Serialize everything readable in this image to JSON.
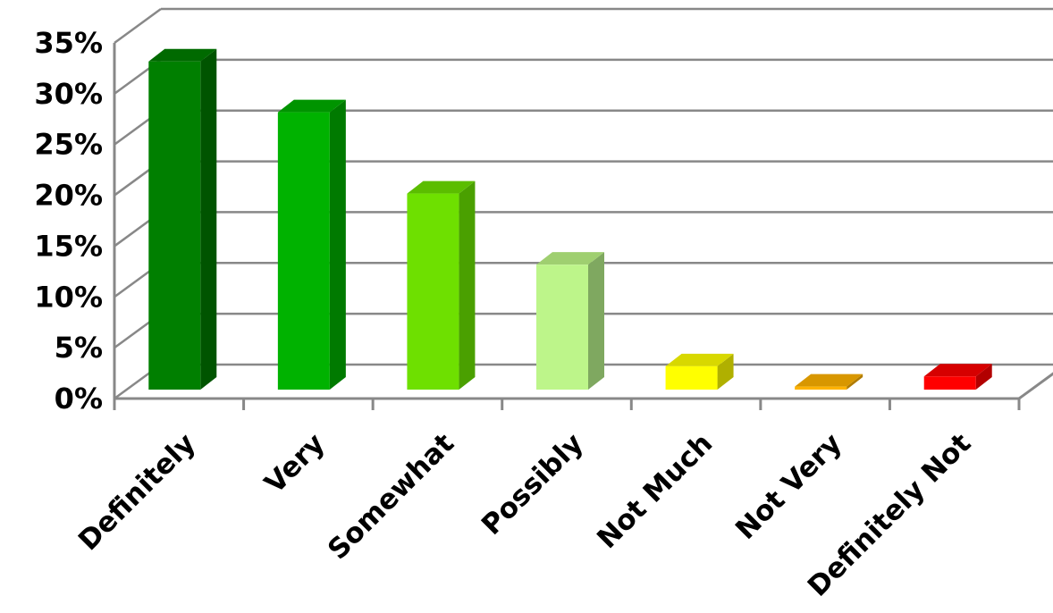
{
  "chart_data": {
    "type": "bar",
    "categories": [
      "Definitely",
      "Very",
      "Somewhat",
      "Possibly",
      "Not Much",
      "Not Very",
      "Definitely Not"
    ],
    "values": [
      33,
      28,
      20,
      13,
      3,
      1,
      2
    ],
    "value_format": "percent",
    "ylim": [
      0,
      35
    ],
    "yticks": [
      "0%",
      "5%",
      "10%",
      "15%",
      "20%",
      "25%",
      "30%",
      "35%"
    ],
    "grid": true,
    "legend": "none",
    "style": "3d-column",
    "colors": {
      "bars_front": [
        "#007f00",
        "#00b200",
        "#6ee000",
        "#bdf58a",
        "#ffff00",
        "#ffb300",
        "#ff0000"
      ],
      "bars_side": [
        "#005400",
        "#007a00",
        "#4aa000",
        "#7fa860",
        "#b0b000",
        "#b07b00",
        "#b20000"
      ],
      "bars_top": [
        "#006a00",
        "#009400",
        "#5bbd00",
        "#9fcf70",
        "#d8d800",
        "#d89700",
        "#d60000"
      ],
      "gridline": "#888888",
      "axis": "#888888"
    }
  }
}
